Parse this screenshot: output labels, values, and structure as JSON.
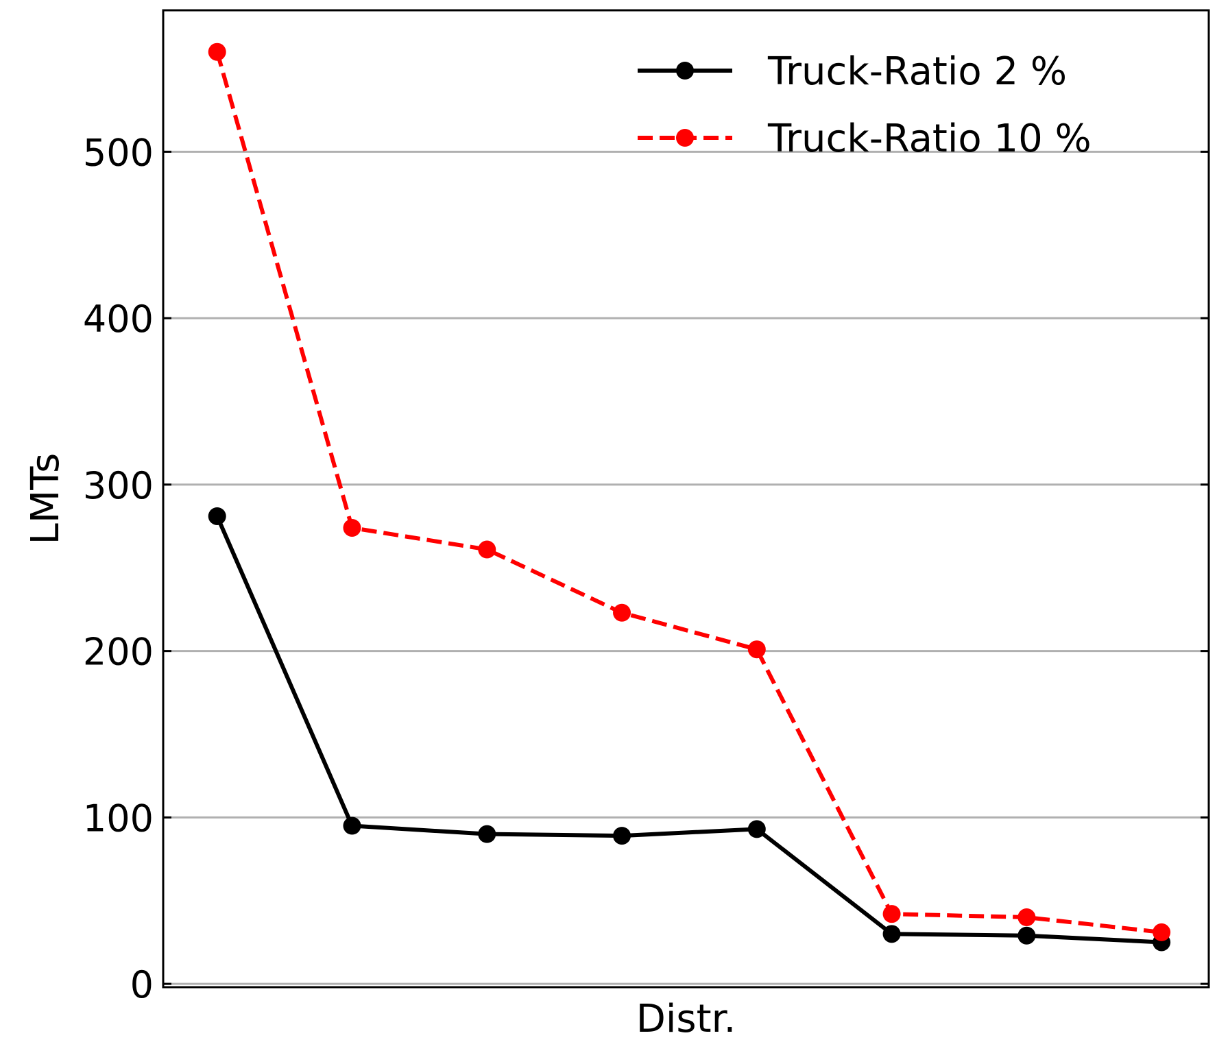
{
  "chart_data": {
    "type": "line",
    "title": "",
    "xlabel": "Distr.",
    "ylabel": "LMTs",
    "x": [
      1,
      2,
      3,
      4,
      5,
      6,
      7,
      8
    ],
    "xlim": [
      0.6,
      8.35
    ],
    "ylim": [
      -2,
      585
    ],
    "yticks": [
      0,
      100,
      200,
      300,
      400,
      500
    ],
    "grid": "horizontal",
    "legend_position": "top-right",
    "series": [
      {
        "name": "Truck-Ratio 2 %",
        "values": [
          281,
          95,
          90,
          89,
          93,
          30,
          29,
          25
        ],
        "color": "#000000",
        "linestyle": "solid",
        "marker": "circle"
      },
      {
        "name": "Truck-Ratio 10 %",
        "values": [
          560,
          274,
          261,
          223,
          201,
          42,
          40,
          31
        ],
        "color": "#ff0000",
        "linestyle": "dashed",
        "marker": "circle"
      }
    ]
  }
}
